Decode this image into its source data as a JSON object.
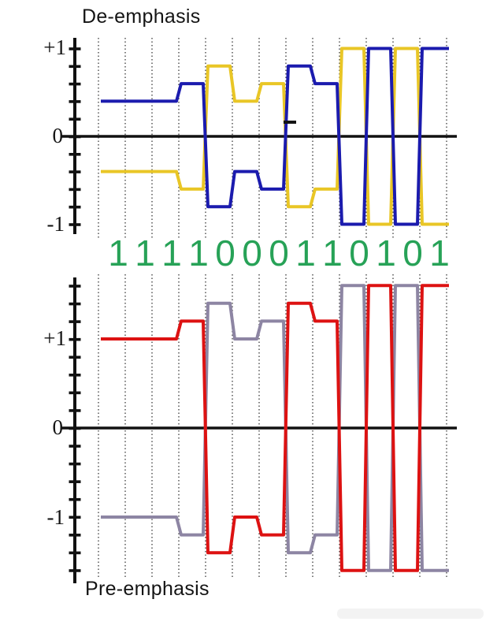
{
  "page": {
    "background": "#ffffff"
  },
  "bit_sequence": [
    "1",
    "1",
    "1",
    "1",
    "0",
    "0",
    "0",
    "1",
    "1",
    "0",
    "1",
    "0",
    "1"
  ],
  "colors": {
    "blue": "#1b1bae",
    "yellow": "#e9c626",
    "red": "#dd1212",
    "gray": "#8d85a3",
    "green": "#27a257",
    "axis": "#111111",
    "gridline": "#3a3a3a"
  },
  "chart_data": [
    {
      "type": "line",
      "title": "De-emphasis",
      "x_bits": [
        "1",
        "1",
        "1",
        "1",
        "0",
        "0",
        "0",
        "1",
        "1",
        "0",
        "1",
        "0",
        "1"
      ],
      "series": [
        {
          "name": "positive-data-line",
          "color_key": "blue",
          "values": [
            0.4,
            0.4,
            0.4,
            0.6,
            -0.8,
            -0.4,
            -0.6,
            0.8,
            0.6,
            -1,
            1,
            -1,
            1
          ]
        },
        {
          "name": "negative-data-line",
          "color_key": "yellow",
          "values": [
            -0.4,
            -0.4,
            -0.4,
            -0.6,
            0.8,
            0.4,
            0.6,
            -0.8,
            -0.6,
            1,
            -1,
            1,
            -1
          ]
        }
      ],
      "ytick_labels": [
        "+1",
        "0",
        "-1"
      ],
      "ytick_values": [
        1,
        0,
        -1
      ],
      "ytick_step": 0.2,
      "ylim": [
        -1.0,
        1.0
      ],
      "grid": "vertical-dotted-per-bit",
      "legend": "none"
    },
    {
      "type": "line",
      "title": "Pre-emphasis",
      "x_bits": [
        "1",
        "1",
        "1",
        "1",
        "0",
        "0",
        "0",
        "1",
        "1",
        "0",
        "1",
        "0",
        "1"
      ],
      "series": [
        {
          "name": "positive-data-line",
          "color_key": "red",
          "values": [
            1,
            1,
            1,
            1.2,
            -1.4,
            -1,
            -1.2,
            1.4,
            1.2,
            -1.6,
            1.6,
            -1.6,
            1.6
          ]
        },
        {
          "name": "negative-data-line",
          "color_key": "gray",
          "values": [
            -1,
            -1,
            -1,
            -1.2,
            1.4,
            1,
            1.2,
            -1.4,
            -1.2,
            1.6,
            -1.6,
            1.6,
            -1.6
          ]
        }
      ],
      "ytick_labels": [
        "+1",
        "0",
        "-1"
      ],
      "ytick_values": [
        1,
        0,
        -1
      ],
      "ytick_step": 0.2,
      "ylim": [
        -1.6,
        1.6
      ],
      "grid": "vertical-dotted-per-bit",
      "legend": "none"
    }
  ],
  "annotations": {
    "stray_dash_mark": true
  },
  "watermark": {
    "present": true,
    "legible": false
  }
}
